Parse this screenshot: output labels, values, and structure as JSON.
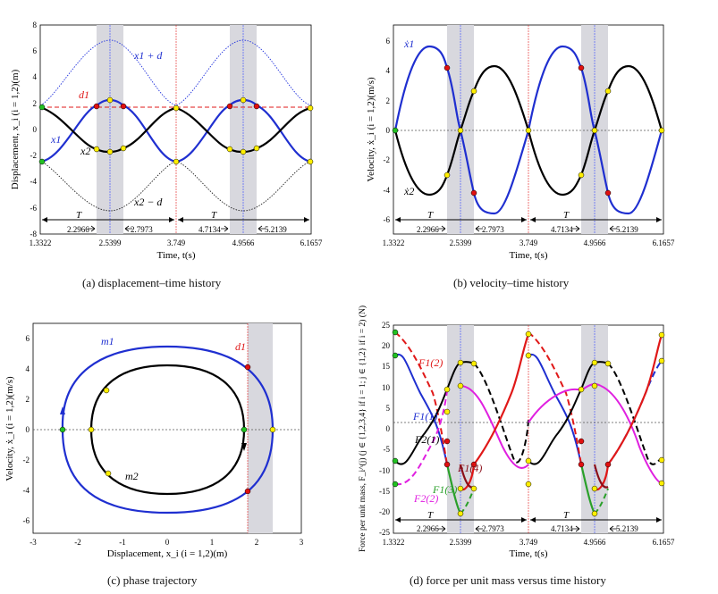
{
  "figure": {
    "captions": {
      "a": "(a)  displacement–time history",
      "b": "(b)  velocity–time history",
      "c": "(c)  phase trajectory",
      "d": "(d)  force per unit mass versus time history"
    }
  },
  "colors": {
    "m1": "#1f2fd0",
    "m2": "#000000",
    "red": "#e01818",
    "magenta": "#e020e0",
    "green": "#2aa02a",
    "band": "#d4d4dc",
    "yellow_dot": "#ffee00",
    "red_dot": "#e01010",
    "green_dot": "#22c022"
  },
  "chart_data": [
    {
      "id": "a",
      "type": "line",
      "title": "",
      "xlabel": "Time, t(s)",
      "ylabel": "Displacement, x_i (i = 1,2)(m)",
      "xlim": [
        1.3322,
        6.1657
      ],
      "ylim": [
        -8,
        8
      ],
      "x_ticks": [
        "1.3322",
        "2.5399",
        "3.749",
        "4.9566",
        "6.1657"
      ],
      "y_ticks": [
        "-8",
        "-6",
        "-4",
        "-2",
        "0",
        "2",
        "4",
        "6",
        "8"
      ],
      "shaded_bands": [
        [
          2.2966,
          2.7973
        ],
        [
          4.7134,
          5.2139
        ]
      ],
      "vlines": [
        3.749
      ],
      "hline": {
        "y": 1.8,
        "label": "d1",
        "color": "red"
      },
      "period": {
        "label": "T",
        "spans": [
          [
            1.3322,
            3.749
          ],
          [
            3.749,
            6.1657
          ]
        ]
      },
      "interval_marks": [
        "2.2966",
        "2.7973",
        "4.7134",
        "5.2139"
      ],
      "curve_labels": [
        "x1 + d",
        "d1",
        "x1",
        "x2",
        "x2 − d"
      ],
      "series": [
        {
          "name": "x1",
          "color": "m1",
          "x": [
            1.3322,
            1.8,
            2.2966,
            2.5399,
            2.7973,
            3.2,
            3.749,
            4.2,
            4.7134,
            4.9566,
            5.2139,
            5.7,
            6.1657
          ],
          "values": [
            -2.3,
            -1.0,
            1.8,
            2.3,
            1.8,
            -0.2,
            -2.3,
            -1.0,
            1.8,
            2.3,
            1.8,
            -0.2,
            -2.3
          ]
        },
        {
          "name": "x2",
          "color": "m2",
          "x": [
            1.3322,
            1.8,
            2.2966,
            2.5399,
            2.7973,
            3.2,
            3.749,
            4.2,
            4.7134,
            4.9566,
            5.2139,
            5.7,
            6.1657
          ],
          "values": [
            1.8,
            0.2,
            -1.3,
            -1.6,
            -1.3,
            0.6,
            1.8,
            0.2,
            -1.3,
            -1.6,
            -1.3,
            0.6,
            1.8
          ]
        },
        {
          "name": "x1 + d",
          "color": "m1",
          "dotted": true,
          "x": [
            1.3322,
            2.5399,
            3.749,
            4.9566,
            6.1657
          ],
          "values": [
            2.0,
            6.8,
            2.0,
            6.8,
            2.0
          ]
        },
        {
          "name": "x2 − d",
          "color": "m2",
          "dotted": true,
          "x": [
            1.3322,
            2.5399,
            3.749,
            4.9566,
            6.1657
          ],
          "values": [
            -2.0,
            -6.1,
            -2.0,
            -6.1,
            -2.0
          ]
        }
      ]
    },
    {
      "id": "b",
      "type": "line",
      "xlabel": "Time, t(s)",
      "ylabel": "Velocity, ẋ_i (i = 1,2)(m/s)",
      "xlim": [
        1.3322,
        6.1657
      ],
      "ylim": [
        -6.5,
        6.5
      ],
      "x_ticks": [
        "1.3322",
        "2.5399",
        "3.749",
        "4.9566",
        "6.1657"
      ],
      "y_ticks": [
        "-6",
        "-4",
        "-2",
        "0",
        "2",
        "4",
        "6"
      ],
      "shaded_bands": [
        [
          2.2966,
          2.7973
        ],
        [
          4.7134,
          5.2139
        ]
      ],
      "vlines": [
        3.749
      ],
      "period": {
        "label": "T",
        "spans": [
          [
            1.3322,
            3.749
          ],
          [
            3.749,
            6.1657
          ]
        ]
      },
      "interval_marks": [
        "2.2966",
        "2.7973",
        "4.7134",
        "5.2139"
      ],
      "curve_labels": [
        "ẋ1",
        "ẋ2"
      ],
      "series": [
        {
          "name": "ẋ1",
          "color": "m1",
          "x": [
            1.3322,
            1.65,
            1.95,
            2.2966,
            2.5399,
            2.7973,
            3.1,
            3.45,
            3.749,
            4.07,
            4.37,
            4.7134,
            4.9566,
            5.2139,
            5.52,
            5.85,
            6.1657
          ],
          "values": [
            0,
            4.6,
            5.5,
            4.1,
            0,
            -4.1,
            -5.5,
            -3.8,
            0,
            4.6,
            5.5,
            4.1,
            0,
            -4.1,
            -5.5,
            -3.8,
            0
          ]
        },
        {
          "name": "ẋ2",
          "color": "m2",
          "x": [
            1.3322,
            1.65,
            1.95,
            2.2966,
            2.5399,
            2.7973,
            3.1,
            3.45,
            3.749,
            4.07,
            4.37,
            4.7134,
            4.9566,
            5.2139,
            5.52,
            5.85,
            6.1657
          ],
          "values": [
            0,
            -3.4,
            -4.2,
            -3.0,
            0,
            2.6,
            4.3,
            3.4,
            0,
            -3.4,
            -4.2,
            -3.0,
            0,
            2.6,
            4.3,
            3.4,
            0
          ]
        }
      ]
    },
    {
      "id": "c",
      "type": "line",
      "xlabel": "Displacement, x_i (i = 1,2)(m)",
      "ylabel": "Velocity, ẋ_i (i = 1,2)(m/s)",
      "xlim": [
        -3,
        3
      ],
      "ylim": [
        -7,
        7
      ],
      "x_ticks": [
        "-3",
        "-2",
        "-1",
        "0",
        "1",
        "2",
        "3"
      ],
      "y_ticks": [
        "-6",
        "-4",
        "-2",
        "0",
        "2",
        "4",
        "6"
      ],
      "shaded_bands": [
        [
          1.8,
          2.4
        ]
      ],
      "vlines": [
        1.8
      ],
      "curve_labels": [
        "m1",
        "m2",
        "d1"
      ],
      "series": [
        {
          "name": "m1",
          "color": "m1",
          "x_amplitude": 2.35,
          "y_amplitude": 5.5,
          "x_center": 0.0
        },
        {
          "name": "m2",
          "color": "m2",
          "x_amplitude": 1.75,
          "y_amplitude": 4.3,
          "x_center": 0.0
        }
      ]
    },
    {
      "id": "d",
      "type": "line",
      "xlabel": "Time, t(s)",
      "ylabel": "Force per unit mass, F_i^(j) (j ∈ {1,2,3,4} if i = 1; j ∈ {1,2} if i = 2) (N)",
      "xlim": [
        1.3322,
        6.1657
      ],
      "ylim": [
        -25,
        25
      ],
      "x_ticks": [
        "1.3322",
        "2.5399",
        "3.749",
        "4.9566",
        "6.1657"
      ],
      "y_ticks": [
        "-25",
        "-20",
        "-15",
        "-10",
        "-5",
        "0",
        "5",
        "10",
        "15",
        "20",
        "25"
      ],
      "shaded_bands": [
        [
          2.2966,
          2.7973
        ],
        [
          4.7134,
          5.2139
        ]
      ],
      "vlines": [
        3.749
      ],
      "period": {
        "label": "T",
        "spans": [
          [
            1.3322,
            3.749
          ],
          [
            3.749,
            6.1657
          ]
        ]
      },
      "interval_marks": [
        "2.2966",
        "2.7973",
        "4.7134",
        "5.2139"
      ],
      "curve_labels": [
        "F1(1)",
        "F1(2)",
        "F2(1)",
        "F2(2)",
        "F1(3)",
        "F1(4)"
      ],
      "series": [
        {
          "name": "F1(1)",
          "color": "m1",
          "x": [
            1.3322,
            1.5,
            1.8,
            2.1,
            2.3,
            2.45
          ],
          "values": [
            17,
            16,
            6,
            0,
            -6,
            -10
          ]
        },
        {
          "name": "F1(2)",
          "color": "red",
          "dashed": true,
          "x": [
            1.3322,
            1.6,
            1.9,
            2.2,
            2.45
          ],
          "values": [
            22,
            16,
            8,
            -2,
            -10
          ]
        },
        {
          "name": "F2(1)",
          "color": "m2",
          "x": [
            1.3322,
            1.6,
            1.9,
            2.2,
            2.45,
            2.5399,
            2.7973
          ],
          "values": [
            -9,
            -10,
            -3,
            3,
            8,
            15.5,
            15
          ]
        },
        {
          "name": "F2(2)",
          "color": "magenta",
          "dashed": true,
          "x": [
            1.3322,
            1.6,
            2.0,
            2.45
          ],
          "values": [
            -16,
            -16,
            -8,
            8
          ]
        },
        {
          "name": "F1(3)",
          "color": "green",
          "x": [
            2.4,
            2.45,
            2.55,
            2.65
          ],
          "values": [
            -11,
            -17,
            -22,
            -23
          ]
        },
        {
          "name": "F1(4)",
          "color": "red",
          "x": [
            2.6,
            2.7973,
            3.0,
            3.3,
            3.749
          ],
          "values": [
            -22,
            -11,
            -5,
            10,
            22
          ]
        }
      ]
    }
  ]
}
